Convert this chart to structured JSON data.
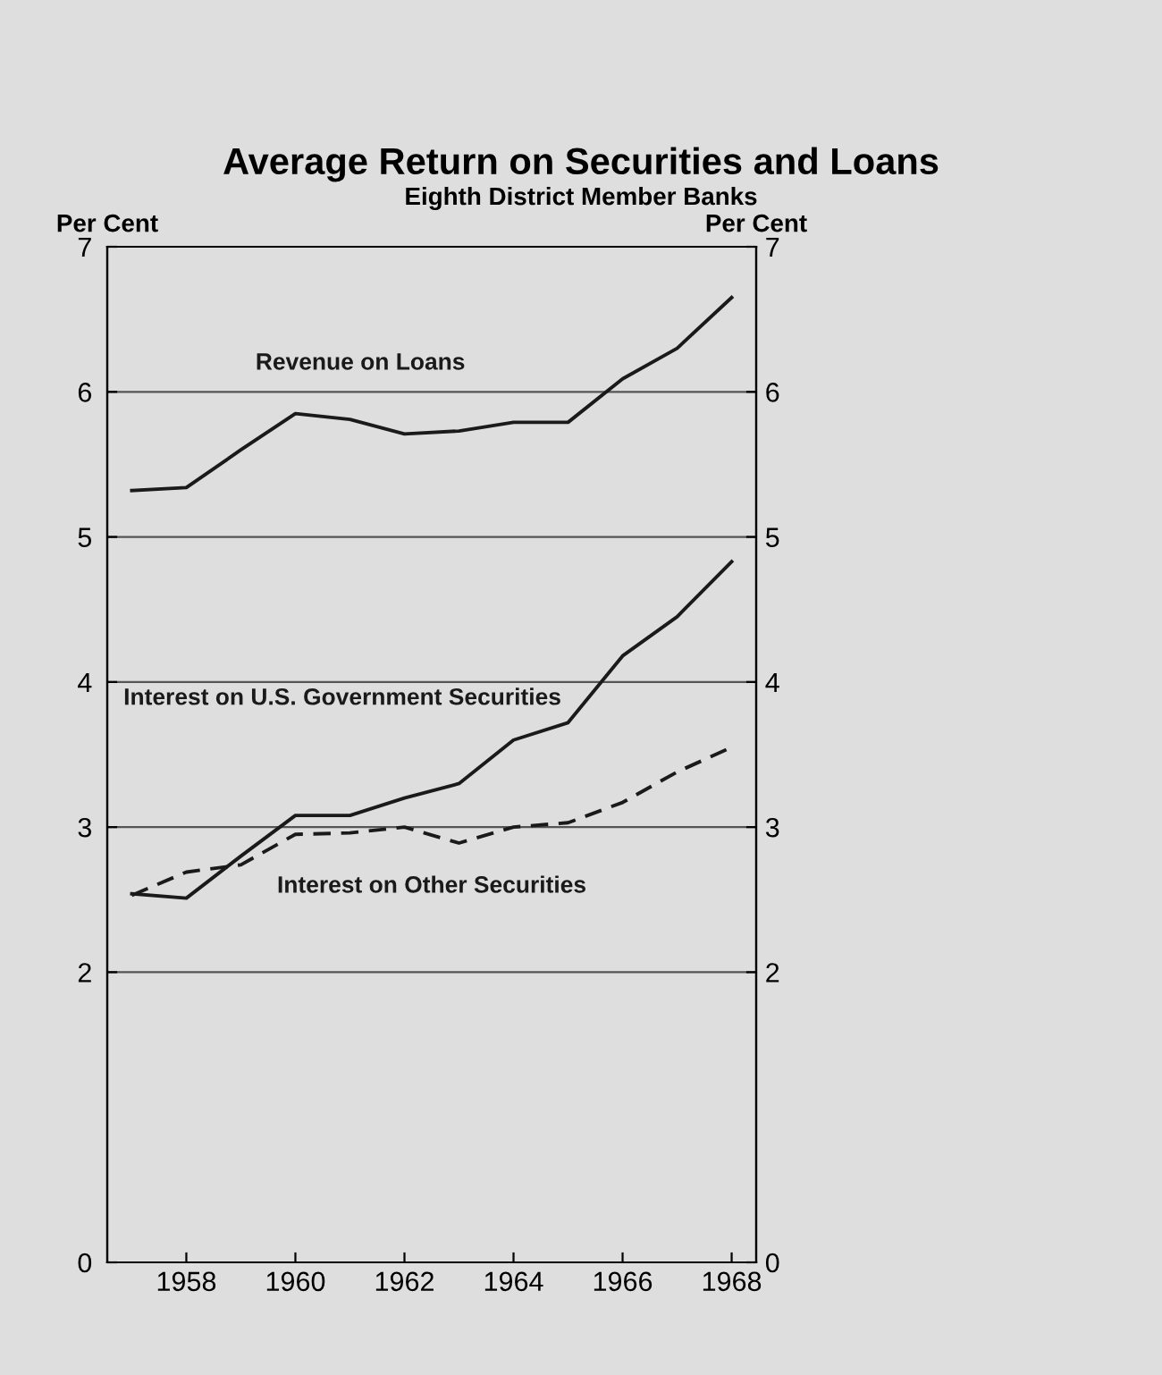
{
  "chart_data": {
    "type": "line",
    "title": "Average Return on Securities and Loans",
    "subtitle": "Eighth District Member Banks",
    "ylabel": "Per Cent",
    "y2label": "Per Cent",
    "x": [
      1957,
      1958,
      1959,
      1960,
      1961,
      1962,
      1963,
      1964,
      1965,
      1966,
      1967,
      1968
    ],
    "xlim": [
      1956.55,
      1968.45
    ],
    "xticks": [
      1958,
      1960,
      1962,
      1964,
      1966,
      1968
    ],
    "ylim": [
      0,
      7
    ],
    "yticks": [
      0,
      2,
      3,
      4,
      5,
      6,
      7
    ],
    "y2lim": [
      0,
      7
    ],
    "y2ticks": [
      0,
      2,
      3,
      4,
      5,
      6,
      7
    ],
    "grid": "y",
    "marker": "none",
    "series": [
      {
        "name": "Revenue on Loans",
        "color": "#1a1a1a",
        "line_style": "solid",
        "values": [
          5.32,
          5.34,
          5.6,
          5.85,
          5.81,
          5.71,
          5.73,
          5.79,
          5.79,
          6.09,
          6.3,
          6.65
        ]
      },
      {
        "name": "Interest on U.S. Government Securities",
        "color": "#1a1a1a",
        "line_style": "solid",
        "values": [
          2.54,
          2.51,
          2.8,
          3.08,
          3.08,
          3.2,
          3.3,
          3.6,
          3.72,
          4.18,
          4.45,
          4.83
        ]
      },
      {
        "name": "Interest on Other Securities",
        "color": "#1a1a1a",
        "line_style": "dashed",
        "values": [
          2.53,
          2.69,
          2.74,
          2.95,
          2.96,
          3.0,
          2.89,
          3.0,
          3.03,
          3.17,
          3.38,
          3.55
        ]
      }
    ]
  }
}
